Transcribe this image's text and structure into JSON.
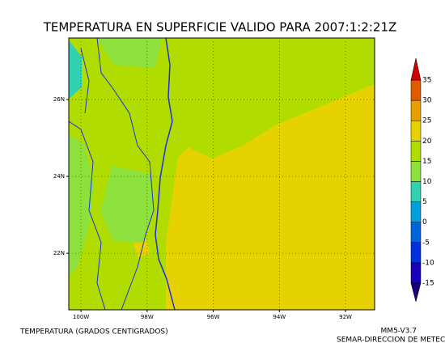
{
  "chart_data": {
    "type": "map",
    "title": "TEMPERATURA EN SUPERFICIE VALIDO PARA 2007:1:2:21Z",
    "xlim": [
      -100.37,
      -91.12
    ],
    "ylim": [
      20.53,
      27.6
    ],
    "xticks": [
      {
        "value": -100,
        "label": "100W"
      },
      {
        "value": -98,
        "label": "98W"
      },
      {
        "value": -96,
        "label": "96W"
      },
      {
        "value": -94,
        "label": "94W"
      },
      {
        "value": -92,
        "label": "92W"
      }
    ],
    "yticks": [
      {
        "value": 22,
        "label": "22N"
      },
      {
        "value": 24,
        "label": "24N"
      },
      {
        "value": 26,
        "label": "26N"
      }
    ],
    "levels": [
      -15,
      -10,
      -5,
      0,
      5,
      10,
      15,
      20,
      25,
      30,
      35
    ],
    "colors": [
      "#1a0078",
      "#1800b8",
      "#0030e0",
      "#0064dc",
      "#00a0dc",
      "#30d0b0",
      "#8ee03c",
      "#b0dc00",
      "#e6d200",
      "#e8a000",
      "#e05a00",
      "#d00000"
    ],
    "grid": true,
    "footer_left": "TEMPERATURA (GRADOS CENTIGRADOS)",
    "footer_right_1": "MM5-V3.7",
    "footer_right_2": "SEMAR-DIRECCION DE METEC"
  }
}
